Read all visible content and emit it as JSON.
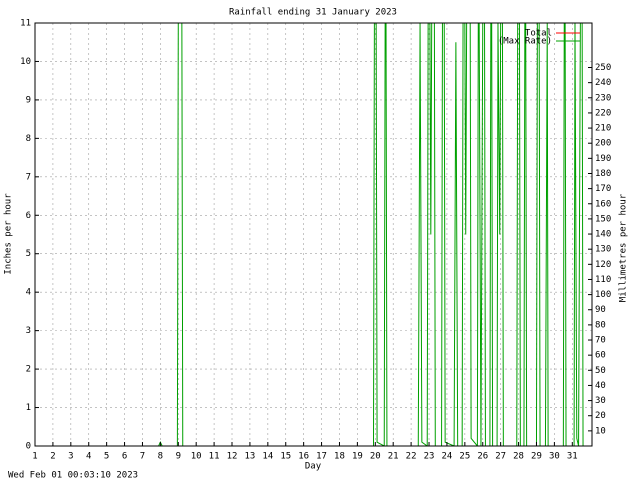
{
  "chart_data": {
    "type": "line",
    "title": "Rainfall ending 31 January 2023",
    "x_label": "Day",
    "y_label": "Inches per hour",
    "y2_label": "Millimetres per hour",
    "footer": "Wed Feb 01 00:03:10 2023",
    "xlim": [
      1,
      32.1
    ],
    "ylim": [
      0,
      11
    ],
    "y2lim": [
      0,
      279.4
    ],
    "xticks": [
      1,
      2,
      3,
      4,
      5,
      6,
      7,
      8,
      9,
      10,
      11,
      12,
      13,
      14,
      15,
      16,
      17,
      18,
      19,
      20,
      21,
      22,
      23,
      24,
      25,
      26,
      27,
      28,
      29,
      30,
      31
    ],
    "yticks": [
      0,
      1,
      2,
      3,
      4,
      5,
      6,
      7,
      8,
      9,
      10,
      11
    ],
    "y2ticks": [
      10,
      20,
      30,
      40,
      50,
      60,
      70,
      80,
      90,
      100,
      110,
      120,
      130,
      140,
      150,
      160,
      170,
      180,
      190,
      200,
      210,
      220,
      230,
      240,
      250
    ],
    "grid": true,
    "legend": "upper right",
    "series": [
      {
        "name": "Total",
        "color": "#ff0000",
        "x": [
          1,
          32.1
        ],
        "values": [
          0,
          0
        ]
      },
      {
        "name": "(Max Rate)",
        "color": "#00a000",
        "x": [
          1,
          7.9,
          8.0,
          8.1,
          8.95,
          9.0,
          9.2,
          9.25,
          19.9,
          19.95,
          20.05,
          20.1,
          20.5,
          20.55,
          20.6,
          20.65,
          22.4,
          22.45,
          22.5,
          22.6,
          22.9,
          22.95,
          23.05,
          23.1,
          23.15,
          23.3,
          23.35,
          23.7,
          23.75,
          23.85,
          23.9,
          24.4,
          24.5,
          24.55,
          24.6,
          24.85,
          24.9,
          25.0,
          25.05,
          25.1,
          25.3,
          25.35,
          25.7,
          25.75,
          25.8,
          25.9,
          26.0,
          26.1,
          26.15,
          26.4,
          26.45,
          26.5,
          26.55,
          26.8,
          26.85,
          26.95,
          27.0,
          27.1,
          27.15,
          27.9,
          27.95,
          28.05,
          28.1,
          28.3,
          28.35,
          28.4,
          28.45,
          29.0,
          29.05,
          29.15,
          29.2,
          29.5,
          29.55,
          29.6,
          29.65,
          30.5,
          30.55,
          30.6,
          30.65,
          31.1,
          31.15,
          31.25,
          31.35,
          31.45,
          31.55,
          31.6,
          32.1
        ],
        "values": [
          0,
          0,
          0.1,
          0,
          0,
          11,
          11,
          0,
          0,
          11,
          11,
          0.1,
          0,
          11,
          11,
          0,
          0,
          5.5,
          11,
          0.1,
          0,
          11,
          11,
          5.5,
          11,
          11,
          0,
          0,
          11,
          11,
          0.1,
          0,
          10.5,
          5.3,
          0,
          0,
          11,
          11,
          5.5,
          11,
          11,
          0.2,
          0,
          11,
          11,
          0,
          11,
          11,
          0,
          0,
          11,
          11,
          0,
          0,
          11,
          5.5,
          11,
          11,
          0,
          0,
          11,
          11,
          0,
          0,
          11,
          11,
          0,
          0,
          11,
          11,
          0,
          0,
          5.5,
          11,
          0,
          0,
          11,
          11,
          0,
          0,
          11,
          0.2,
          0,
          11,
          11,
          0,
          0
        ]
      }
    ]
  }
}
